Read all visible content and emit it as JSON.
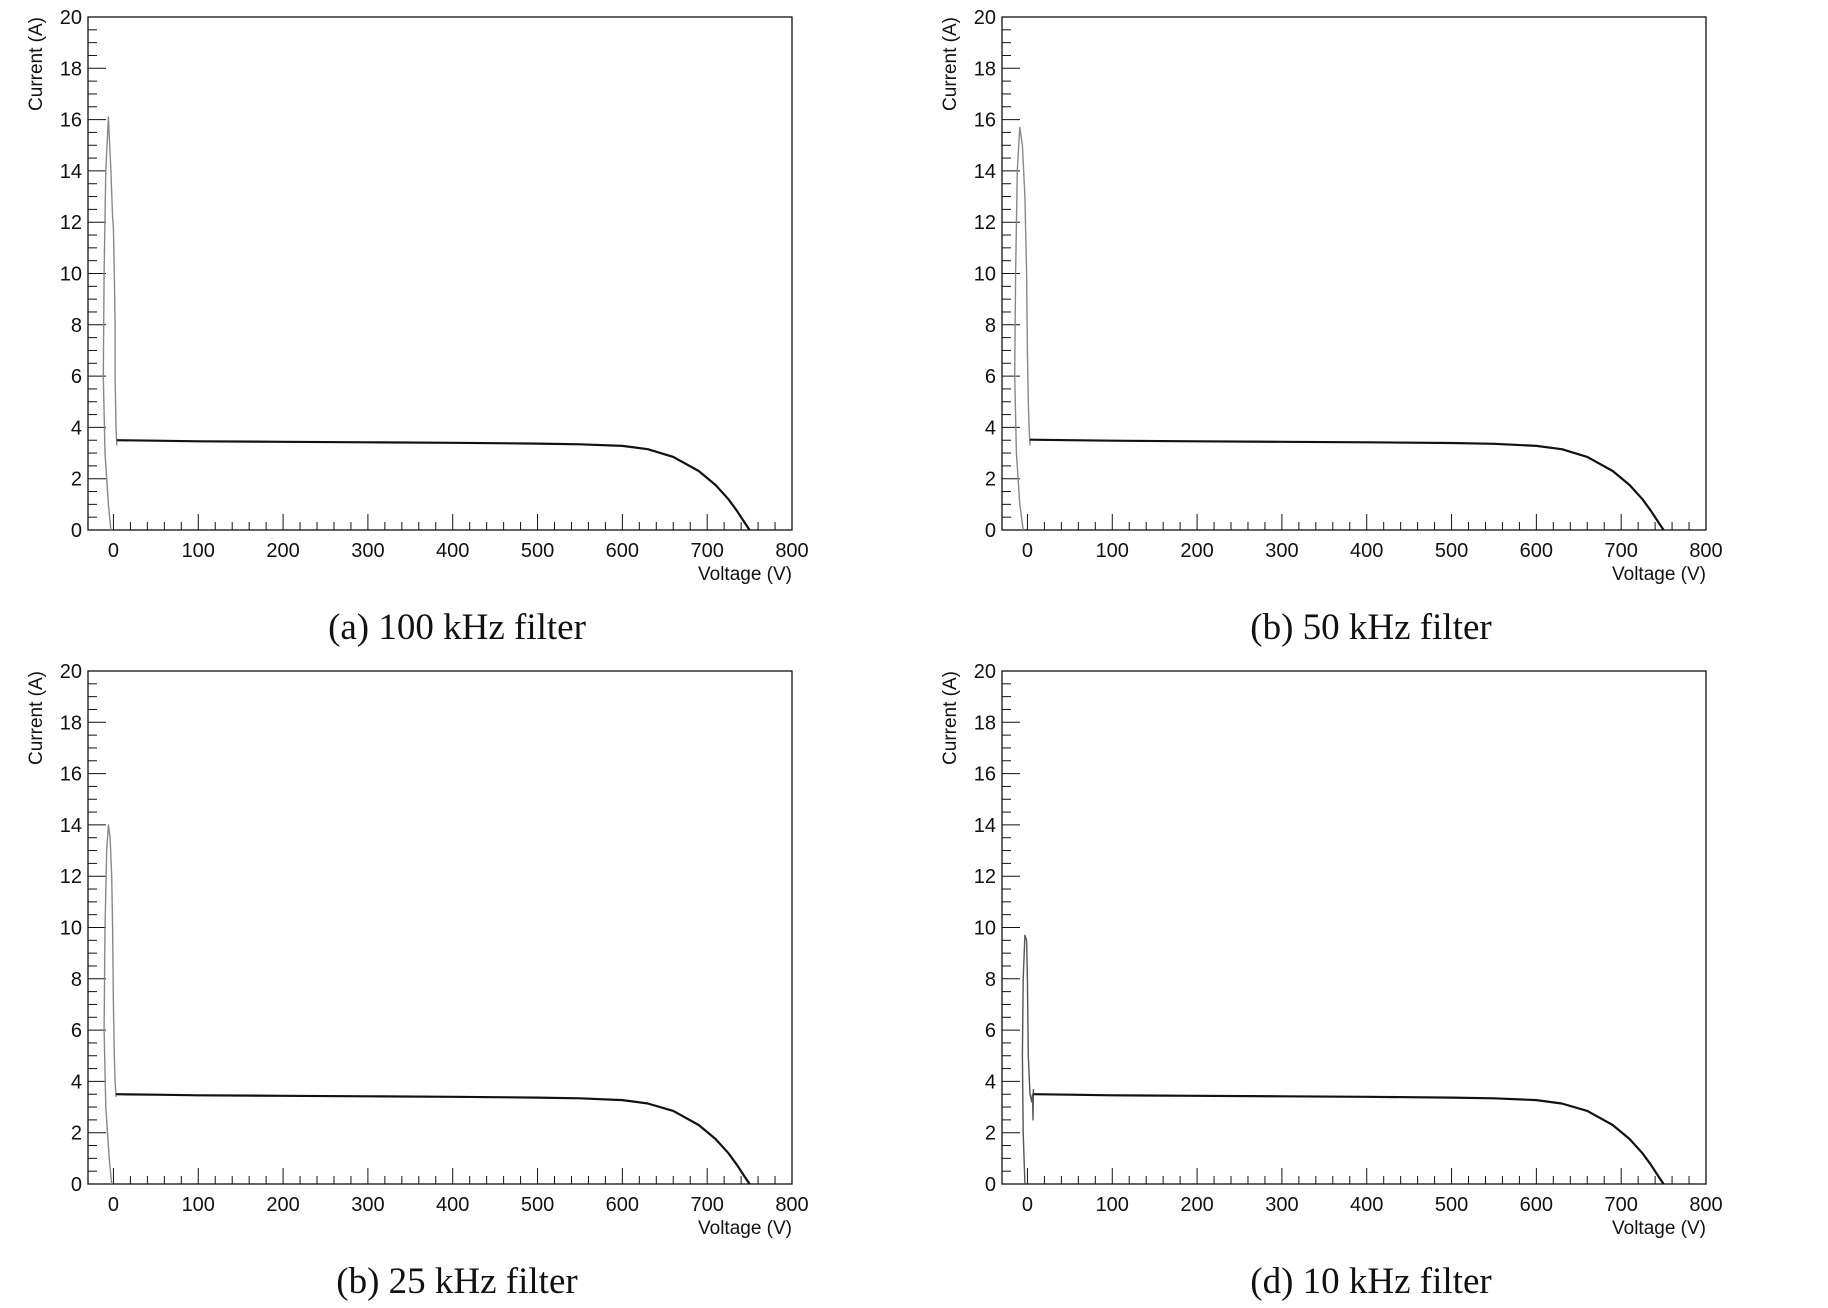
{
  "chart_data": [
    {
      "type": "line",
      "caption": "(a) 100 kHz filter",
      "xlabel": "Voltage (V)",
      "ylabel": "Current (A)",
      "xlim": [
        -30,
        800
      ],
      "ylim": [
        0,
        20
      ],
      "xticks": [
        "0",
        "100",
        "200",
        "300",
        "400",
        "500",
        "600",
        "700",
        "800"
      ],
      "yticks": [
        "0",
        "2",
        "4",
        "6",
        "8",
        "10",
        "12",
        "14",
        "16",
        "18",
        "20"
      ],
      "grid": false,
      "series": [
        {
          "color": "#888888",
          "x": [
            -3,
            -6,
            -10,
            -12,
            -11,
            -9,
            -6,
            -3,
            -1,
            0,
            1,
            2,
            2,
            3,
            4
          ],
          "y": [
            0,
            1,
            3,
            6,
            10,
            14,
            16.1,
            14,
            12.2,
            11.8,
            10,
            8,
            6,
            4,
            3.3
          ]
        },
        {
          "color": "#111111",
          "x": [
            4,
            50,
            100,
            200,
            300,
            400,
            500,
            550,
            600,
            630,
            660,
            690,
            710,
            725,
            735,
            745,
            750
          ],
          "y": [
            3.5,
            3.48,
            3.46,
            3.44,
            3.42,
            3.4,
            3.37,
            3.34,
            3.28,
            3.15,
            2.85,
            2.3,
            1.75,
            1.2,
            0.75,
            0.25,
            0
          ]
        }
      ]
    },
    {
      "type": "line",
      "caption": "(b) 50 kHz filter",
      "xlabel": "Voltage (V)",
      "ylabel": "Current (A)",
      "xlim": [
        -30,
        800
      ],
      "ylim": [
        0,
        20
      ],
      "xticks": [
        "0",
        "100",
        "200",
        "300",
        "400",
        "500",
        "600",
        "700",
        "800"
      ],
      "yticks": [
        "0",
        "2",
        "4",
        "6",
        "8",
        "10",
        "12",
        "14",
        "16",
        "18",
        "20"
      ],
      "grid": false,
      "series": [
        {
          "color": "#888888",
          "x": [
            -5,
            -9,
            -13,
            -15,
            -14,
            -12,
            -9,
            -6,
            -3,
            -1,
            0,
            1,
            2,
            3
          ],
          "y": [
            0,
            1,
            3,
            6,
            10,
            14,
            15.7,
            15,
            13,
            10,
            7,
            5,
            4,
            3.3
          ]
        },
        {
          "color": "#111111",
          "x": [
            3,
            50,
            100,
            200,
            300,
            400,
            500,
            550,
            600,
            630,
            660,
            690,
            710,
            725,
            735,
            745,
            750
          ],
          "y": [
            3.52,
            3.5,
            3.48,
            3.46,
            3.44,
            3.42,
            3.39,
            3.36,
            3.28,
            3.15,
            2.85,
            2.3,
            1.75,
            1.2,
            0.75,
            0.25,
            0
          ]
        }
      ]
    },
    {
      "type": "line",
      "caption": "(b) 25 kHz filter",
      "xlabel": "Voltage (V)",
      "ylabel": "Current (A)",
      "xlim": [
        -30,
        800
      ],
      "ylim": [
        0,
        20
      ],
      "xticks": [
        "0",
        "100",
        "200",
        "300",
        "400",
        "500",
        "600",
        "700",
        "800"
      ],
      "yticks": [
        "0",
        "2",
        "4",
        "6",
        "8",
        "10",
        "12",
        "14",
        "16",
        "18",
        "20"
      ],
      "grid": false,
      "series": [
        {
          "color": "#888888",
          "x": [
            -2,
            -5,
            -9,
            -11,
            -10,
            -8,
            -6,
            -4,
            -2,
            -1,
            0,
            1,
            2,
            3
          ],
          "y": [
            0,
            1,
            3,
            6,
            10,
            13,
            14,
            13.5,
            12,
            10,
            7,
            5,
            4,
            3.4
          ]
        },
        {
          "color": "#111111",
          "x": [
            3,
            50,
            100,
            200,
            300,
            400,
            500,
            550,
            600,
            630,
            660,
            690,
            710,
            725,
            735,
            745,
            750
          ],
          "y": [
            3.5,
            3.48,
            3.46,
            3.44,
            3.42,
            3.4,
            3.37,
            3.34,
            3.27,
            3.14,
            2.85,
            2.3,
            1.75,
            1.2,
            0.75,
            0.25,
            0
          ]
        }
      ]
    },
    {
      "type": "line",
      "caption": "(d) 10 kHz filter",
      "xlabel": "Voltage (V)",
      "ylabel": "Current (A)",
      "xlim": [
        -30,
        800
      ],
      "ylim": [
        0,
        20
      ],
      "xticks": [
        "0",
        "100",
        "200",
        "300",
        "400",
        "500",
        "600",
        "700",
        "800"
      ],
      "yticks": [
        "0",
        "2",
        "4",
        "6",
        "8",
        "10",
        "12",
        "14",
        "16",
        "18",
        "20"
      ],
      "grid": false,
      "series": [
        {
          "color": "#555555",
          "x": [
            -3,
            -5,
            -6,
            -5,
            -3,
            -1,
            0,
            1,
            3,
            5,
            6,
            6.5,
            7
          ],
          "y": [
            0,
            2,
            5,
            8,
            9.7,
            9.5,
            8,
            5,
            3.5,
            3.2,
            3.5,
            2.5,
            3.7
          ]
        },
        {
          "color": "#111111",
          "x": [
            7,
            50,
            100,
            200,
            300,
            400,
            500,
            550,
            600,
            630,
            660,
            690,
            710,
            725,
            735,
            745,
            750
          ],
          "y": [
            3.5,
            3.48,
            3.46,
            3.44,
            3.42,
            3.4,
            3.37,
            3.34,
            3.27,
            3.14,
            2.85,
            2.3,
            1.75,
            1.2,
            0.75,
            0.25,
            0
          ]
        }
      ]
    }
  ]
}
